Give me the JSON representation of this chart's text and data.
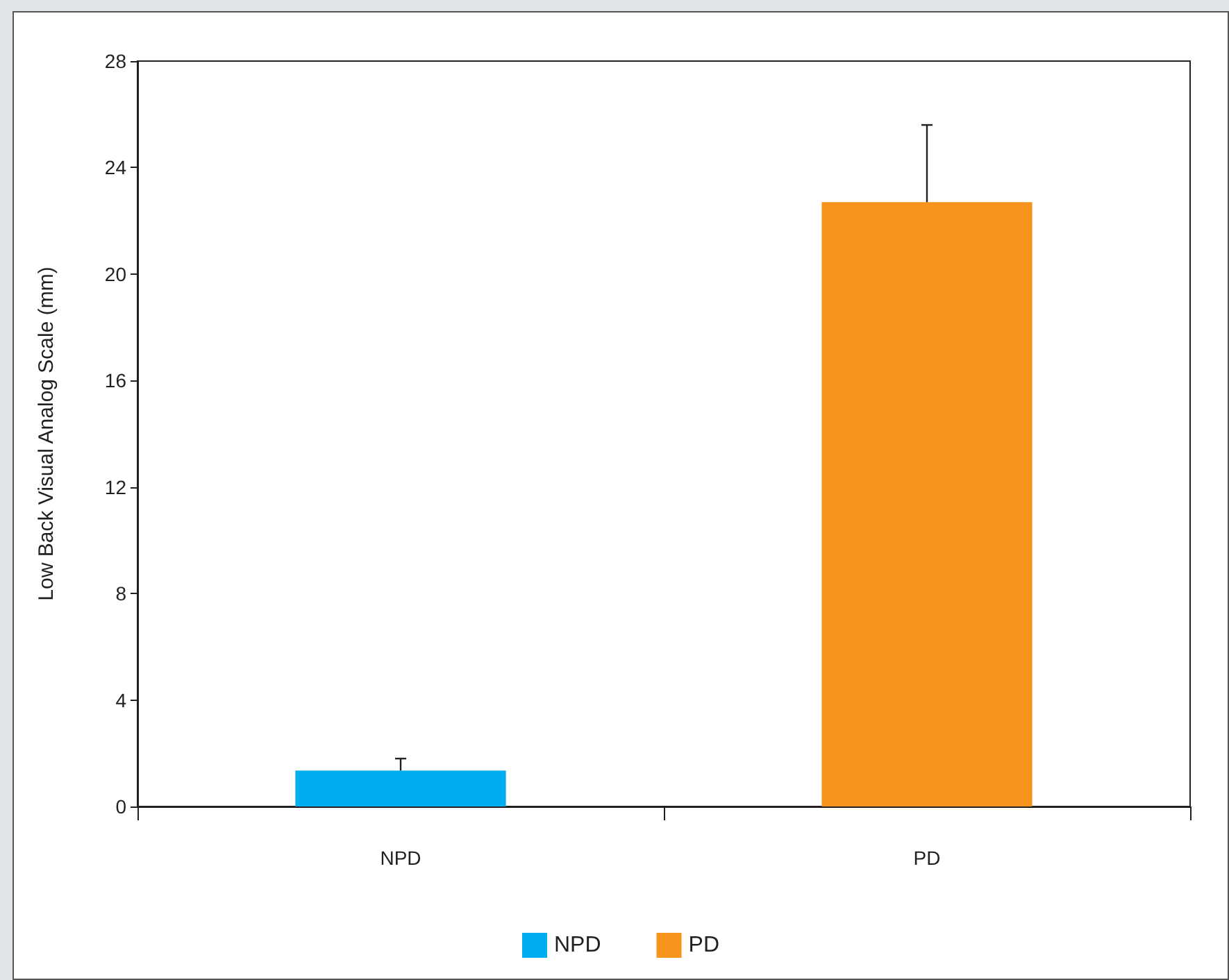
{
  "chart_data": {
    "type": "bar",
    "ylabel": "Low Back Visual Analog Scale (mm)",
    "categories": [
      "NPD",
      "PD"
    ],
    "series": [
      {
        "name": "NPD",
        "color": "#00aeef",
        "values": [
          1.35,
          null
        ],
        "errors": [
          [
            1.35,
            1.8
          ],
          null
        ]
      },
      {
        "name": "PD",
        "color": "#f7941d",
        "values": [
          null,
          22.7
        ],
        "errors": [
          null,
          [
            22.7,
            25.6
          ]
        ]
      }
    ],
    "ylim": [
      0,
      28
    ],
    "yticks": [
      0,
      4,
      8,
      12,
      16,
      20,
      24,
      28
    ],
    "grid": false,
    "legend": "bottom"
  }
}
